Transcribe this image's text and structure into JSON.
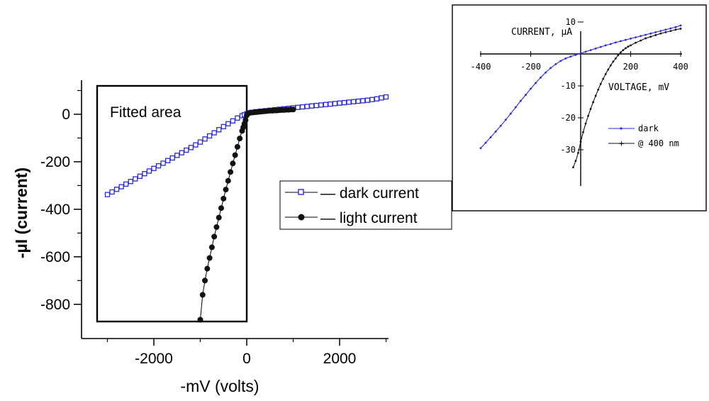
{
  "chart_data": [
    {
      "type": "scatter",
      "xlabel": "-mV (volts)",
      "ylabel": "-µI (current)",
      "xlim": [
        -3500,
        3200
      ],
      "ylim": [
        -900,
        140
      ],
      "xticks": [
        "-2000",
        "0",
        "2000"
      ],
      "yticks": [
        "0",
        "-200",
        "-400",
        "-600",
        "-800"
      ],
      "annotation": "Fitted area",
      "legend": {
        "position": "right",
        "entries": [
          {
            "label": "— dark current",
            "marker": "open-square",
            "color": "#2a2ad8"
          },
          {
            "label": "— light current",
            "marker": "filled-circle",
            "color": "#111111"
          }
        ]
      },
      "series": [
        {
          "marker": "open-square",
          "color": "#2a2ad8",
          "x": [
            -3000,
            -2900,
            -2800,
            -2700,
            -2600,
            -2500,
            -2400,
            -2300,
            -2200,
            -2100,
            -2000,
            -1900,
            -1800,
            -1700,
            -1600,
            -1500,
            -1400,
            -1300,
            -1200,
            -1100,
            -1000,
            -900,
            -800,
            -700,
            -600,
            -500,
            -400,
            -300,
            -200,
            -100,
            -50,
            0,
            50,
            100,
            200,
            300,
            400,
            500,
            600,
            700,
            800,
            900,
            1000,
            1100,
            1200,
            1300,
            1400,
            1500,
            1600,
            1700,
            1800,
            1900,
            2000,
            2100,
            2200,
            2300,
            2400,
            2500,
            2600,
            2700,
            2800,
            2900,
            3000
          ],
          "y": [
            -338,
            -327,
            -316,
            -305,
            -294,
            -283,
            -272,
            -261,
            -250,
            -239,
            -228,
            -217,
            -206,
            -195,
            -184,
            -173,
            -162,
            -151,
            -140,
            -129,
            -117,
            -104,
            -91,
            -78,
            -65,
            -52,
            -40,
            -28,
            -16,
            -6,
            -2,
            2,
            6,
            8,
            11,
            13,
            15,
            17,
            19,
            21,
            23,
            25,
            27,
            29,
            31,
            33,
            35,
            37,
            39,
            41,
            43,
            45,
            47,
            49,
            51,
            53,
            55,
            57,
            59,
            62,
            65,
            69,
            73
          ]
        },
        {
          "marker": "filled-circle",
          "color": "#111111",
          "x": [
            -1000,
            -950,
            -900,
            -850,
            -800,
            -750,
            -700,
            -650,
            -600,
            -550,
            -500,
            -450,
            -400,
            -350,
            -300,
            -250,
            -200,
            -150,
            -100,
            -75,
            -50,
            -25,
            0,
            25,
            50,
            100,
            150,
            200,
            250,
            300,
            350,
            400,
            450,
            500,
            550,
            600,
            650,
            700,
            750,
            800,
            850,
            900,
            950,
            1000
          ],
          "y": [
            -865,
            -760,
            -700,
            -650,
            -605,
            -560,
            -515,
            -475,
            -435,
            -395,
            -355,
            -317,
            -280,
            -243,
            -207,
            -172,
            -137,
            -102,
            -70,
            -55,
            -40,
            -25,
            -5,
            3,
            5,
            7,
            8,
            9,
            10,
            11,
            12,
            13,
            14,
            15,
            15,
            16,
            16,
            17,
            18,
            18,
            19,
            19,
            20,
            20
          ]
        }
      ]
    },
    {
      "type": "line",
      "ylabel": "CURRENT, µA",
      "xlabel": "VOLTAGE, mV",
      "xlim": [
        -400,
        400
      ],
      "ylim": [
        -36,
        10
      ],
      "xticks": [
        "-400",
        "-200",
        "200",
        "400"
      ],
      "yticks": [
        "10",
        "-10",
        "-20",
        "-30"
      ],
      "legend": {
        "position": "bottom-right",
        "entries": [
          {
            "label": "dark",
            "color": "#2a2ad8"
          },
          {
            "label": "@ 400 nm",
            "color": "#111111"
          }
        ]
      },
      "series": [
        {
          "name": "dark",
          "color": "#2a2ad8",
          "x": [
            -400,
            -380,
            -360,
            -340,
            -320,
            -300,
            -280,
            -260,
            -240,
            -220,
            -200,
            -180,
            -160,
            -140,
            -120,
            -100,
            -80,
            -60,
            -40,
            -20,
            0,
            20,
            40,
            60,
            80,
            100,
            120,
            140,
            160,
            180,
            200,
            220,
            240,
            260,
            280,
            300,
            320,
            340,
            360,
            380,
            400
          ],
          "y": [
            -29.5,
            -27.8,
            -26.1,
            -24.3,
            -22.5,
            -20.6,
            -18.7,
            -16.7,
            -14.7,
            -12.8,
            -10.9,
            -9.1,
            -7.4,
            -5.8,
            -4.4,
            -3.2,
            -2.2,
            -1.4,
            -0.8,
            -0.3,
            0.2,
            0.7,
            1.2,
            1.7,
            2.2,
            2.7,
            3.1,
            3.6,
            4.0,
            4.4,
            4.8,
            5.2,
            5.6,
            6.0,
            6.4,
            6.8,
            7.2,
            7.6,
            8.0,
            8.4,
            8.9
          ]
        },
        {
          "name": "@ 400 nm",
          "color": "#111111",
          "x": [
            -30,
            -20,
            -10,
            0,
            10,
            20,
            30,
            40,
            50,
            60,
            70,
            80,
            90,
            100,
            110,
            120,
            130,
            140,
            150,
            160,
            170,
            180,
            190,
            200,
            220,
            240,
            260,
            280,
            300,
            320,
            340,
            360,
            380,
            400
          ],
          "y": [
            -35.5,
            -33.5,
            -31.0,
            -27.5,
            -24.5,
            -21.8,
            -19.4,
            -17.2,
            -15.1,
            -13.1,
            -11.2,
            -9.4,
            -7.8,
            -6.3,
            -4.9,
            -3.6,
            -2.4,
            -1.4,
            -0.4,
            0.5,
            1.2,
            1.8,
            2.3,
            2.7,
            3.5,
            4.2,
            4.9,
            5.4,
            5.9,
            6.4,
            6.8,
            7.2,
            7.6,
            7.9
          ]
        }
      ]
    }
  ]
}
